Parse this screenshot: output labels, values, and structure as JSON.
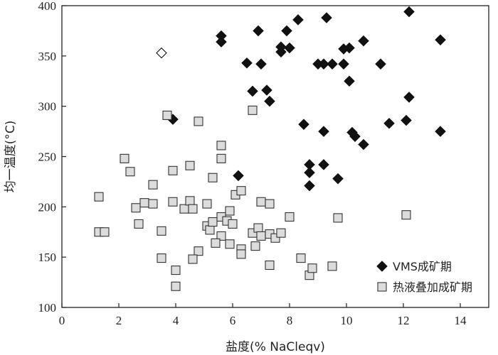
{
  "chart_data": {
    "type": "scatter",
    "xlabel": "盐度(% NaCleqv)",
    "ylabel": "均一温度(°C)",
    "xlim": [
      0,
      15
    ],
    "ylim": [
      100,
      400
    ],
    "xticks": [
      0,
      2,
      4,
      6,
      8,
      10,
      12,
      14
    ],
    "yticks": [
      100,
      150,
      200,
      250,
      300,
      350,
      400
    ],
    "grid": false,
    "legend_position": "bottom-right",
    "series": [
      {
        "name": "VMS成矿期",
        "marker": "diamond-filled",
        "color": "#111111",
        "points": [
          [
            12.2,
            394
          ],
          [
            9.3,
            388
          ],
          [
            8.3,
            386
          ],
          [
            6.9,
            375
          ],
          [
            7.9,
            375
          ],
          [
            5.6,
            370
          ],
          [
            5.6,
            364
          ],
          [
            13.3,
            366
          ],
          [
            10.6,
            365
          ],
          [
            7.7,
            359
          ],
          [
            8.0,
            358
          ],
          [
            10.1,
            358
          ],
          [
            9.9,
            357
          ],
          [
            7.7,
            354
          ],
          [
            6.5,
            343
          ],
          [
            7.0,
            342
          ],
          [
            9.0,
            342
          ],
          [
            9.2,
            342
          ],
          [
            9.5,
            342
          ],
          [
            9.9,
            342
          ],
          [
            11.2,
            342
          ],
          [
            10.1,
            325
          ],
          [
            6.7,
            315
          ],
          [
            7.2,
            316
          ],
          [
            12.2,
            309
          ],
          [
            7.3,
            305
          ],
          [
            3.9,
            287
          ],
          [
            8.5,
            282
          ],
          [
            11.5,
            283
          ],
          [
            12.1,
            286
          ],
          [
            9.2,
            275
          ],
          [
            10.2,
            274
          ],
          [
            10.3,
            270
          ],
          [
            13.3,
            275
          ],
          [
            10.6,
            262
          ],
          [
            8.7,
            242
          ],
          [
            9.2,
            242
          ],
          [
            8.7,
            234
          ],
          [
            9.7,
            228
          ],
          [
            6.2,
            231
          ],
          [
            8.7,
            221
          ]
        ]
      },
      {
        "name": "热液叠加成矿期",
        "marker": "square-open",
        "color": "#dcdcdc",
        "points": [
          [
            3.7,
            291
          ],
          [
            4.8,
            285
          ],
          [
            6.7,
            296
          ],
          [
            5.6,
            261
          ],
          [
            2.2,
            248
          ],
          [
            5.6,
            248
          ],
          [
            2.4,
            235
          ],
          [
            3.9,
            236
          ],
          [
            4.5,
            241
          ],
          [
            5.3,
            229
          ],
          [
            3.2,
            222
          ],
          [
            1.3,
            210
          ],
          [
            6.1,
            212
          ],
          [
            6.3,
            216
          ],
          [
            2.9,
            204
          ],
          [
            3.2,
            203
          ],
          [
            2.6,
            199
          ],
          [
            3.9,
            205
          ],
          [
            4.3,
            198
          ],
          [
            4.5,
            206
          ],
          [
            4.6,
            198
          ],
          [
            5.1,
            203
          ],
          [
            7.0,
            205
          ],
          [
            7.3,
            203
          ],
          [
            5.9,
            196
          ],
          [
            5.6,
            190
          ],
          [
            5.8,
            186
          ],
          [
            6.0,
            183
          ],
          [
            5.1,
            181
          ],
          [
            5.2,
            177
          ],
          [
            5.3,
            185
          ],
          [
            2.7,
            183
          ],
          [
            6.7,
            174
          ],
          [
            6.9,
            179
          ],
          [
            7.0,
            171
          ],
          [
            7.3,
            173
          ],
          [
            7.5,
            169
          ],
          [
            7.7,
            174
          ],
          [
            8.0,
            190
          ],
          [
            9.7,
            189
          ],
          [
            12.1,
            192
          ],
          [
            1.3,
            175
          ],
          [
            1.5,
            175
          ],
          [
            3.5,
            176
          ],
          [
            5.6,
            171
          ],
          [
            5.4,
            164
          ],
          [
            5.9,
            163
          ],
          [
            6.3,
            158
          ],
          [
            6.3,
            153
          ],
          [
            6.8,
            161
          ],
          [
            4.8,
            156
          ],
          [
            4.6,
            148
          ],
          [
            3.5,
            149
          ],
          [
            7.3,
            142
          ],
          [
            8.4,
            149
          ],
          [
            8.7,
            132
          ],
          [
            8.8,
            139
          ],
          [
            9.5,
            141
          ],
          [
            4.0,
            137
          ],
          [
            4.0,
            121
          ]
        ]
      },
      {
        "name": "",
        "marker": "diamond-open",
        "color": "#ffffff",
        "points": [
          [
            3.5,
            353
          ]
        ]
      }
    ]
  }
}
